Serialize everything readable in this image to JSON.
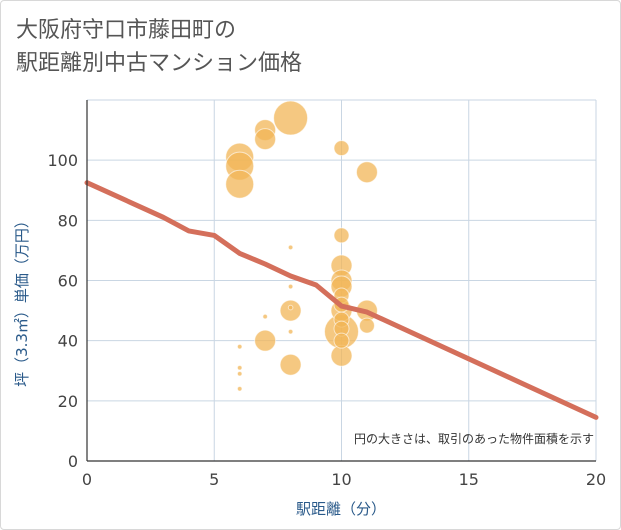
{
  "chart_data": {
    "type": "scatter",
    "title": [
      "大阪府守口市藤田町の",
      "駅距離別中古マンション価格"
    ],
    "xlabel": "駅距離（分）",
    "ylabel": "坪（3.3㎡）単価（万円）",
    "xlim": [
      0,
      20
    ],
    "ylim": [
      0,
      120
    ],
    "xticks": [
      0,
      5,
      10,
      15,
      20
    ],
    "yticks": [
      0,
      20,
      40,
      60,
      80,
      100
    ],
    "note": "円の大きさは、取引のあった物件面積を示す",
    "colors": {
      "bubble": "#f2b657",
      "trend": "#d46f5b",
      "grid": "#c9d6e3",
      "axis": "#333333"
    },
    "points": [
      {
        "x": 6,
        "y": 101,
        "size": 5
      },
      {
        "x": 6,
        "y": 98,
        "size": 5
      },
      {
        "x": 6,
        "y": 92,
        "size": 5
      },
      {
        "x": 6,
        "y": 38,
        "size": 1
      },
      {
        "x": 6,
        "y": 31,
        "size": 1
      },
      {
        "x": 6,
        "y": 29,
        "size": 1
      },
      {
        "x": 6,
        "y": 24,
        "size": 1
      },
      {
        "x": 7,
        "y": 110,
        "size": 3
      },
      {
        "x": 7,
        "y": 107,
        "size": 3
      },
      {
        "x": 7,
        "y": 48,
        "size": 1
      },
      {
        "x": 7,
        "y": 40,
        "size": 3
      },
      {
        "x": 8,
        "y": 114,
        "size": 6
      },
      {
        "x": 8,
        "y": 71,
        "size": 1
      },
      {
        "x": 8,
        "y": 58,
        "size": 1
      },
      {
        "x": 8,
        "y": 51,
        "size": 1
      },
      {
        "x": 8,
        "y": 50,
        "size": 3
      },
      {
        "x": 8,
        "y": 43,
        "size": 1
      },
      {
        "x": 8,
        "y": 32,
        "size": 3
      },
      {
        "x": 10,
        "y": 104,
        "size": 2
      },
      {
        "x": 10,
        "y": 75,
        "size": 2
      },
      {
        "x": 10,
        "y": 65,
        "size": 3
      },
      {
        "x": 10,
        "y": 60,
        "size": 3
      },
      {
        "x": 10,
        "y": 58,
        "size": 3
      },
      {
        "x": 10,
        "y": 55,
        "size": 2
      },
      {
        "x": 10,
        "y": 52,
        "size": 2
      },
      {
        "x": 10,
        "y": 50,
        "size": 3
      },
      {
        "x": 10,
        "y": 47,
        "size": 2
      },
      {
        "x": 10,
        "y": 44,
        "size": 2
      },
      {
        "x": 10,
        "y": 43,
        "size": 6
      },
      {
        "x": 10,
        "y": 40,
        "size": 2
      },
      {
        "x": 10,
        "y": 35,
        "size": 3
      },
      {
        "x": 11,
        "y": 96,
        "size": 3
      },
      {
        "x": 11,
        "y": 50,
        "size": 3
      },
      {
        "x": 11,
        "y": 45,
        "size": 2
      }
    ],
    "trend": [
      {
        "x": 0,
        "y": 92.5
      },
      {
        "x": 3,
        "y": 81
      },
      {
        "x": 4,
        "y": 76.5
      },
      {
        "x": 5,
        "y": 75
      },
      {
        "x": 6,
        "y": 69
      },
      {
        "x": 7,
        "y": 65.5
      },
      {
        "x": 8,
        "y": 61.5
      },
      {
        "x": 9,
        "y": 58.5
      },
      {
        "x": 10,
        "y": 51.5
      },
      {
        "x": 11,
        "y": 49.5
      },
      {
        "x": 20,
        "y": 14.5
      }
    ]
  }
}
